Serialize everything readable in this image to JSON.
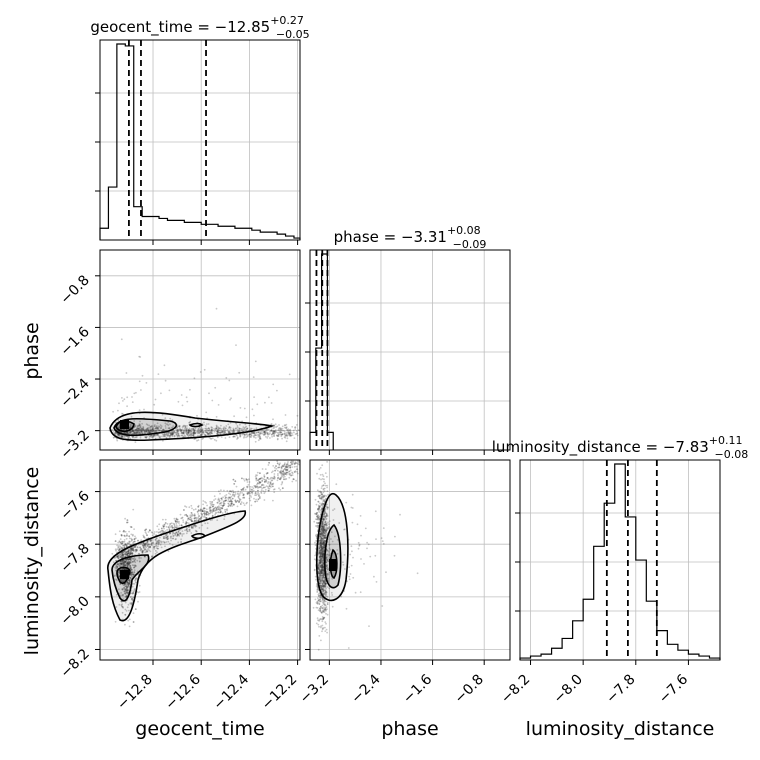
{
  "chart_data": {
    "type": "corner",
    "grid": true,
    "parameters": [
      {
        "name": "geocent_time",
        "median": "−12.85",
        "plus": "+0.27",
        "minus": "−0.05",
        "range": [
          -13.02,
          -12.19
        ],
        "ticks": [
          "−12.8",
          "−12.6",
          "−12.4",
          "−12.2"
        ],
        "quantile_lines": [
          -12.9,
          -12.85,
          -12.58
        ]
      },
      {
        "name": "phase",
        "median": "−3.31",
        "plus": "+0.08",
        "minus": "−0.09",
        "range": [
          -3.5,
          -0.4
        ],
        "ticks": [
          "−3.2",
          "−2.4",
          "−1.6",
          "−0.8"
        ],
        "quantile_lines": [
          -3.4,
          -3.31,
          -3.23
        ]
      },
      {
        "name": "luminosity_distance",
        "median": "−7.83",
        "plus": "+0.11",
        "minus": "−0.08",
        "range": [
          -8.24,
          -7.48
        ],
        "ticks": [
          "−8.2",
          "−8.0",
          "−7.8",
          "−7.6"
        ],
        "quantile_lines": [
          -7.91,
          -7.83,
          -7.72
        ]
      }
    ],
    "hist_geocent_time": {
      "bins": [
        -13.02,
        -12.985,
        -12.95,
        -12.915,
        -12.88,
        -12.845,
        -12.81,
        -12.775,
        -12.74,
        -12.705,
        -12.67,
        -12.635,
        -12.6,
        -12.565,
        -12.53,
        -12.495,
        -12.46,
        -12.425,
        -12.39,
        -12.355,
        -12.32,
        -12.285,
        -12.25,
        -12.215,
        -12.19
      ],
      "values": [
        0.06,
        0.27,
        1.0,
        0.99,
        0.17,
        0.12,
        0.12,
        0.11,
        0.1,
        0.1,
        0.09,
        0.09,
        0.08,
        0.08,
        0.07,
        0.07,
        0.06,
        0.06,
        0.05,
        0.04,
        0.04,
        0.03,
        0.02,
        0.01
      ]
    },
    "hist_phase": {
      "bins": [
        -3.5,
        -3.41,
        -3.32,
        -3.23,
        -3.14
      ],
      "values": [
        0.09,
        0.52,
        1.0,
        0.09
      ]
    },
    "hist_luminosity_distance": {
      "bins": [
        -8.24,
        -8.2,
        -8.16,
        -8.12,
        -8.08,
        -8.04,
        -8.0,
        -7.96,
        -7.92,
        -7.88,
        -7.84,
        -7.8,
        -7.76,
        -7.72,
        -7.68,
        -7.64,
        -7.6,
        -7.56,
        -7.52,
        -7.48
      ],
      "values": [
        0.01,
        0.02,
        0.03,
        0.06,
        0.11,
        0.2,
        0.31,
        0.58,
        0.8,
        1.0,
        0.73,
        0.51,
        0.3,
        0.15,
        0.08,
        0.05,
        0.03,
        0.02,
        0.01
      ]
    }
  }
}
